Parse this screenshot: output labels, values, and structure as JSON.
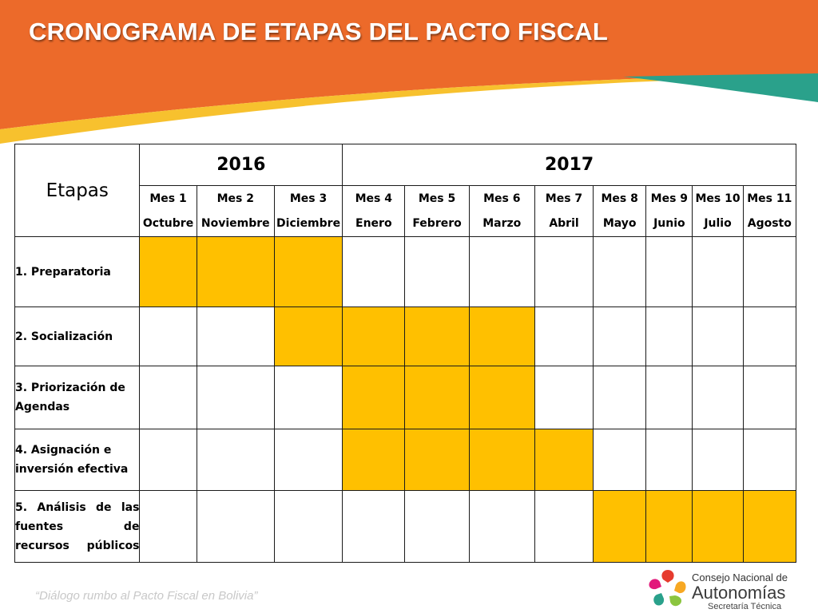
{
  "slide": {
    "title": "CRONOGRAMA DE ETAPAS DEL PACTO FISCAL",
    "footer": "“Diálogo rumbo al Pacto Fiscal en Bolivia”",
    "colors": {
      "header": "#EC6A2A",
      "accent_yellow": "#F7C12E",
      "accent_teal": "#2AA18B",
      "gantt_fill": "#FFC000"
    }
  },
  "table": {
    "etapas_header": "Etapas",
    "years": [
      {
        "label": "2016",
        "span": 3
      },
      {
        "label": "2017",
        "span": 8
      }
    ],
    "months": [
      {
        "mes": "Mes 1",
        "name": "Octubre"
      },
      {
        "mes": "Mes 2",
        "name": "Noviembre"
      },
      {
        "mes": "Mes 3",
        "name": "Diciembre"
      },
      {
        "mes": "Mes 4",
        "name": "Enero"
      },
      {
        "mes": "Mes 5",
        "name": "Febrero"
      },
      {
        "mes": "Mes 6",
        "name": "Marzo"
      },
      {
        "mes": "Mes 7",
        "name": "Abril"
      },
      {
        "mes": "Mes 8",
        "name": "Mayo"
      },
      {
        "mes": "Mes 9",
        "name": "Junio"
      },
      {
        "mes": "Mes 10",
        "name": "Julio"
      },
      {
        "mes": "Mes 11",
        "name": "Agosto"
      }
    ],
    "stages": [
      {
        "label": "1. Preparatoria",
        "active": [
          1,
          1,
          1,
          0,
          0,
          0,
          0,
          0,
          0,
          0,
          0
        ]
      },
      {
        "label": "2. Socialización",
        "active": [
          0,
          0,
          1,
          1,
          1,
          1,
          0,
          0,
          0,
          0,
          0
        ]
      },
      {
        "label": "3. Priorización de Agendas",
        "active": [
          0,
          0,
          0,
          1,
          1,
          1,
          0,
          0,
          0,
          0,
          0
        ]
      },
      {
        "label": "4. Asignación e inversión efectiva",
        "active": [
          0,
          0,
          0,
          1,
          1,
          1,
          1,
          0,
          0,
          0,
          0
        ]
      },
      {
        "label": "5. Análisis de las fuentes de recursos públicos",
        "active": [
          0,
          0,
          0,
          0,
          0,
          0,
          0,
          1,
          1,
          1,
          1
        ]
      }
    ]
  },
  "logo": {
    "line1": "Consejo Nacional de",
    "line2": "Autonomías",
    "line3": "Secretaría Técnica"
  }
}
